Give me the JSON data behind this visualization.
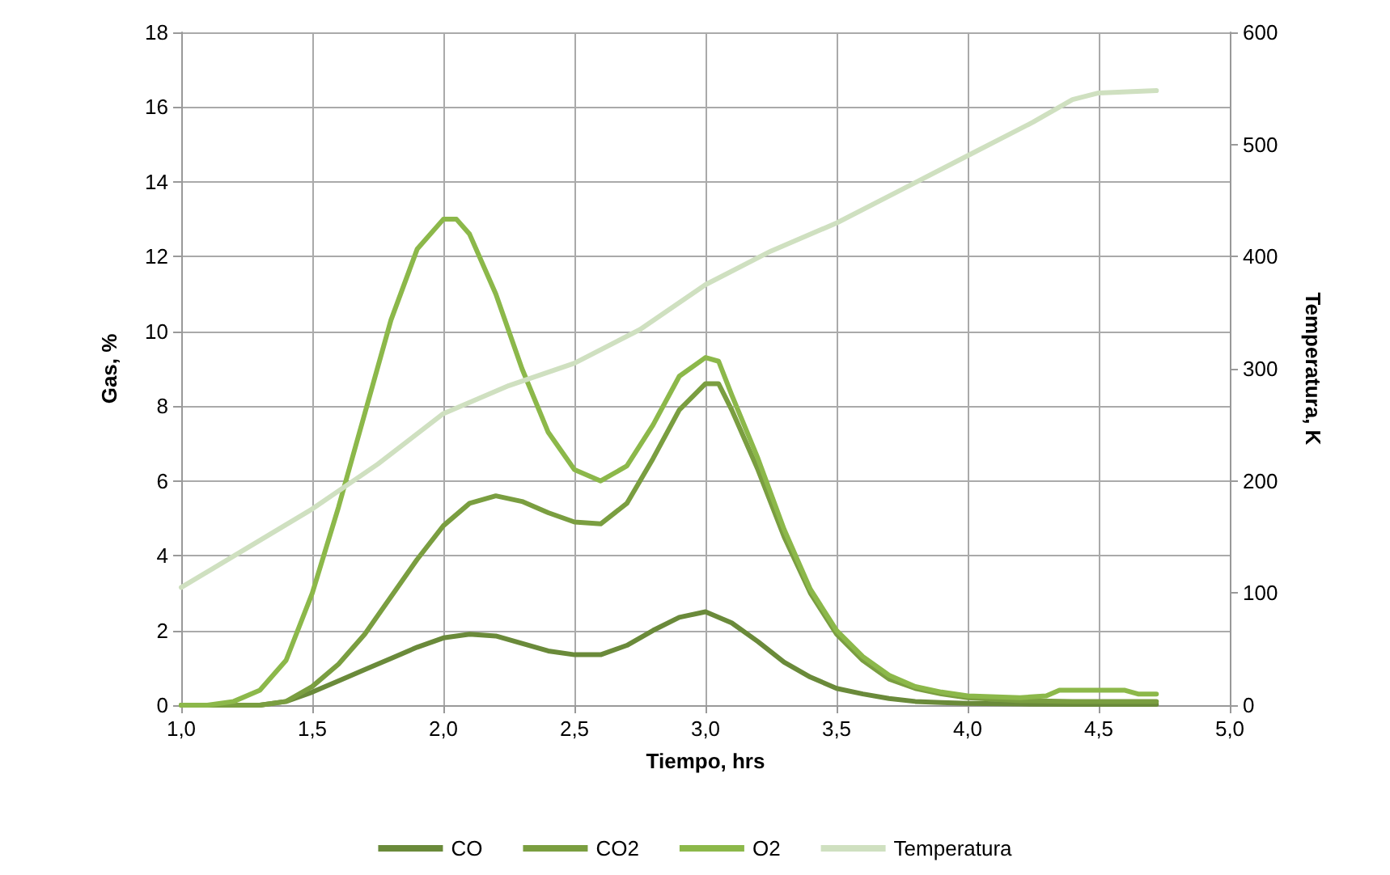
{
  "chart_data": {
    "type": "line",
    "xlabel": "Tiempo, hrs",
    "ylabel": "Gas, %",
    "y2label": "Temperatura, K",
    "xlim": [
      1,
      5
    ],
    "xticks": [
      {
        "value": 1,
        "label": "1,0"
      },
      {
        "value": 1.5,
        "label": "1,5"
      },
      {
        "value": 2,
        "label": "2,0"
      },
      {
        "value": 2.5,
        "label": "2,5"
      },
      {
        "value": 3,
        "label": "3,0"
      },
      {
        "value": 3.5,
        "label": "3,5"
      },
      {
        "value": 4,
        "label": "4,0"
      },
      {
        "value": 4.5,
        "label": "4,5"
      },
      {
        "value": 5,
        "label": "5,0"
      }
    ],
    "ylim": [
      0,
      18
    ],
    "yticks": [
      0,
      2,
      4,
      6,
      8,
      10,
      12,
      14,
      16,
      18
    ],
    "y2lim": [
      0,
      600
    ],
    "y2ticks": [
      0,
      100,
      200,
      300,
      400,
      500,
      600
    ],
    "grid": true,
    "legend": "bottom",
    "marker": "none",
    "line_style": "solid",
    "series": [
      {
        "name": "CO",
        "color": "#6a8a3a",
        "x": [
          1,
          1.3,
          1.4,
          1.5,
          1.6,
          1.7,
          1.8,
          1.9,
          2,
          2.1,
          2.2,
          2.3,
          2.4,
          2.5,
          2.6,
          2.7,
          2.8,
          2.9,
          3,
          3.1,
          3.2,
          3.3,
          3.4,
          3.5,
          3.6,
          3.7,
          3.8,
          3.9,
          4,
          4.2,
          4.4,
          4.72
        ],
        "values": [
          0,
          0,
          0.1,
          0.35,
          0.65,
          0.95,
          1.25,
          1.55,
          1.8,
          1.9,
          1.85,
          1.65,
          1.45,
          1.35,
          1.35,
          1.6,
          2,
          2.35,
          2.5,
          2.2,
          1.7,
          1.15,
          0.75,
          0.45,
          0.3,
          0.18,
          0.1,
          0.07,
          0.05,
          0.03,
          0.02,
          0.02
        ]
      },
      {
        "name": "CO2",
        "color": "#7a9e40",
        "x": [
          1,
          1.3,
          1.4,
          1.5,
          1.6,
          1.7,
          1.8,
          1.9,
          2,
          2.1,
          2.2,
          2.3,
          2.4,
          2.5,
          2.6,
          2.7,
          2.8,
          2.9,
          3,
          3.05,
          3.1,
          3.2,
          3.3,
          3.4,
          3.5,
          3.6,
          3.7,
          3.8,
          3.9,
          4,
          4.2,
          4.4,
          4.72
        ],
        "values": [
          0,
          0,
          0.1,
          0.5,
          1.1,
          1.9,
          2.9,
          3.9,
          4.8,
          5.4,
          5.6,
          5.45,
          5.15,
          4.9,
          4.85,
          5.4,
          6.6,
          7.9,
          8.6,
          8.6,
          7.9,
          6.3,
          4.5,
          3,
          1.9,
          1.2,
          0.7,
          0.45,
          0.3,
          0.2,
          0.12,
          0.1,
          0.1
        ]
      },
      {
        "name": "O2",
        "color": "#8cb84a",
        "x": [
          1,
          1.1,
          1.2,
          1.3,
          1.4,
          1.5,
          1.6,
          1.7,
          1.8,
          1.9,
          2,
          2.05,
          2.1,
          2.2,
          2.3,
          2.4,
          2.5,
          2.6,
          2.7,
          2.8,
          2.9,
          3,
          3.05,
          3.1,
          3.2,
          3.3,
          3.4,
          3.5,
          3.6,
          3.7,
          3.8,
          3.9,
          4,
          4.2,
          4.3,
          4.35,
          4.6,
          4.65,
          4.72
        ],
        "values": [
          0,
          0,
          0.1,
          0.4,
          1.2,
          3,
          5.3,
          7.8,
          10.3,
          12.2,
          13,
          13,
          12.6,
          11,
          9,
          7.3,
          6.3,
          6,
          6.4,
          7.5,
          8.8,
          9.3,
          9.2,
          8.3,
          6.6,
          4.7,
          3.1,
          2,
          1.3,
          0.8,
          0.5,
          0.35,
          0.25,
          0.2,
          0.25,
          0.4,
          0.4,
          0.3,
          0.3
        ]
      },
      {
        "name": "Temperatura",
        "color": "#cfe0c0",
        "axis": "y2",
        "x": [
          1,
          1.25,
          1.5,
          1.75,
          2,
          2.25,
          2.5,
          2.75,
          3,
          3.25,
          3.5,
          3.75,
          4,
          4.25,
          4.4,
          4.5,
          4.72
        ],
        "values": [
          105,
          140,
          175,
          215,
          260,
          285,
          305,
          335,
          375,
          405,
          430,
          460,
          490,
          520,
          540,
          546,
          548
        ]
      }
    ]
  }
}
